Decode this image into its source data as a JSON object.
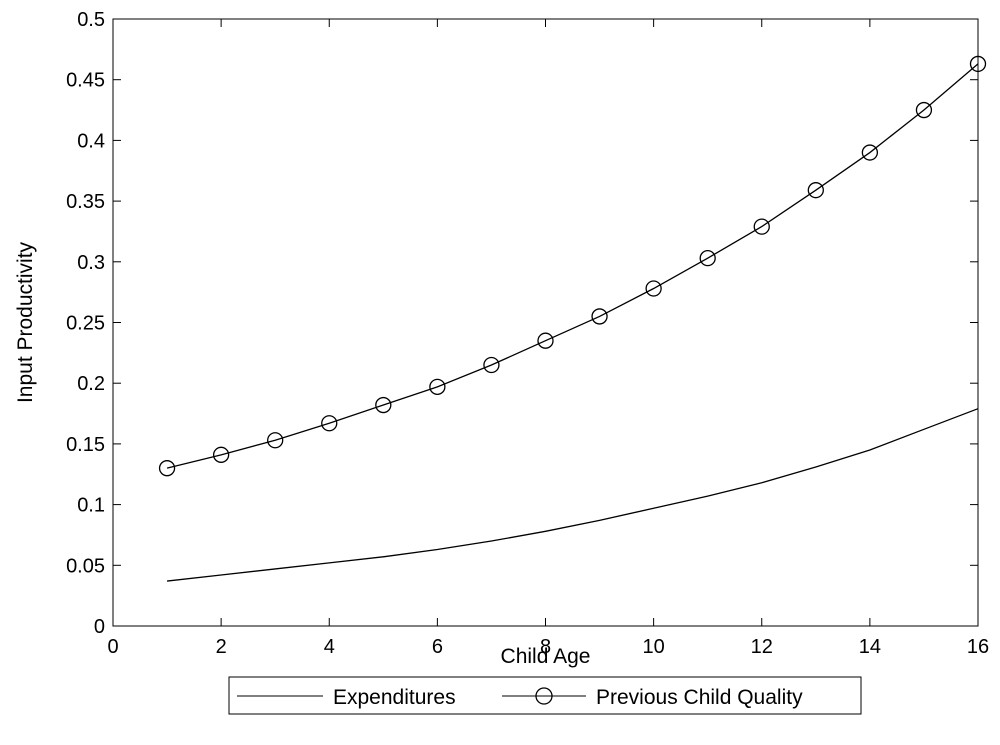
{
  "chart_data": {
    "type": "line",
    "title": "",
    "xlabel": "Child Age",
    "ylabel": "Input Productivity",
    "xlim": [
      0,
      16
    ],
    "ylim": [
      0,
      0.5
    ],
    "x_ticks": [
      "0",
      "2",
      "4",
      "6",
      "8",
      "10",
      "12",
      "14",
      "16"
    ],
    "y_ticks": [
      "0",
      "0.05",
      "0.1",
      "0.15",
      "0.2",
      "0.25",
      "0.3",
      "0.35",
      "0.4",
      "0.45",
      "0.5"
    ],
    "grid": false,
    "legend_position": "bottom-outside",
    "x": [
      1,
      2,
      3,
      4,
      5,
      6,
      7,
      8,
      9,
      10,
      11,
      12,
      13,
      14,
      15,
      16
    ],
    "series": [
      {
        "name": "Expenditures",
        "marker": "none",
        "color": "#000000",
        "values": [
          0.037,
          0.042,
          0.047,
          0.052,
          0.057,
          0.063,
          0.07,
          0.078,
          0.087,
          0.097,
          0.107,
          0.118,
          0.131,
          0.145,
          0.162,
          0.179
        ]
      },
      {
        "name": "Previous Child Quality",
        "marker": "circle",
        "color": "#000000",
        "values": [
          0.13,
          0.141,
          0.153,
          0.167,
          0.182,
          0.197,
          0.215,
          0.235,
          0.255,
          0.278,
          0.303,
          0.329,
          0.359,
          0.39,
          0.425,
          0.463
        ]
      }
    ]
  }
}
